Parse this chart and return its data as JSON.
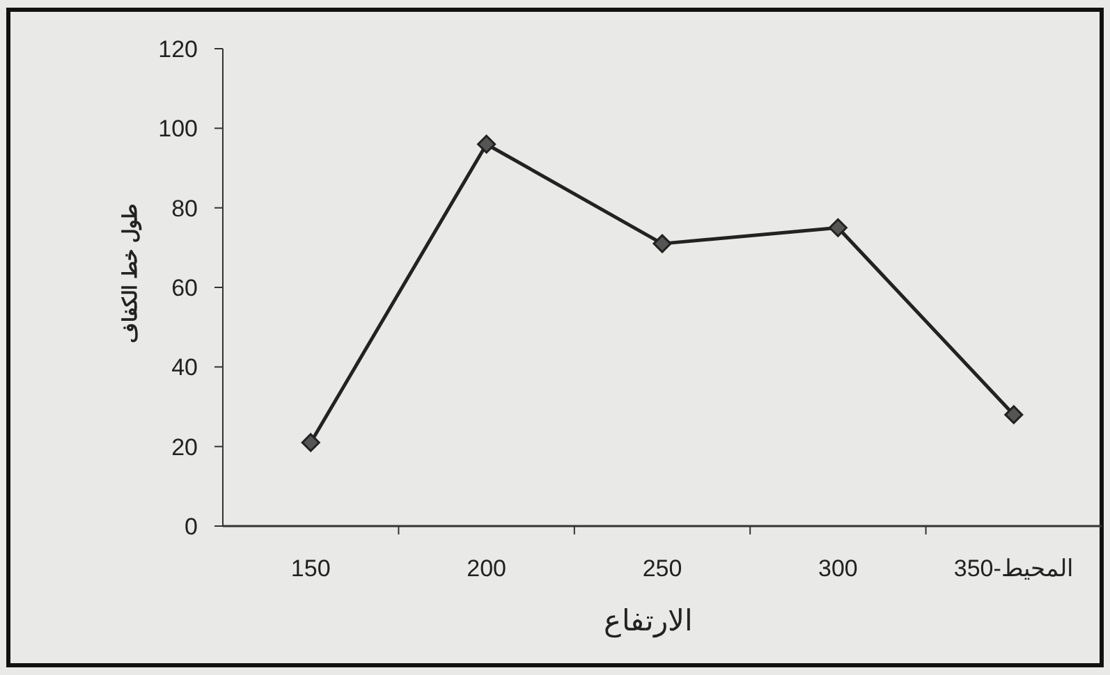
{
  "chart_data": {
    "type": "line",
    "xlabel": "الارتفاع",
    "ylabel": "طول خط الكفاف",
    "categories": [
      "150",
      "200",
      "250",
      "300",
      "350-المحيط"
    ],
    "series": [
      {
        "color": "#222222",
        "values": [
          21,
          96,
          71,
          75,
          28
        ]
      }
    ],
    "ylim": [
      0,
      120
    ],
    "yticks": [
      0,
      20,
      40,
      60,
      80,
      100,
      120
    ],
    "marker": "diamond",
    "grid": false
  }
}
